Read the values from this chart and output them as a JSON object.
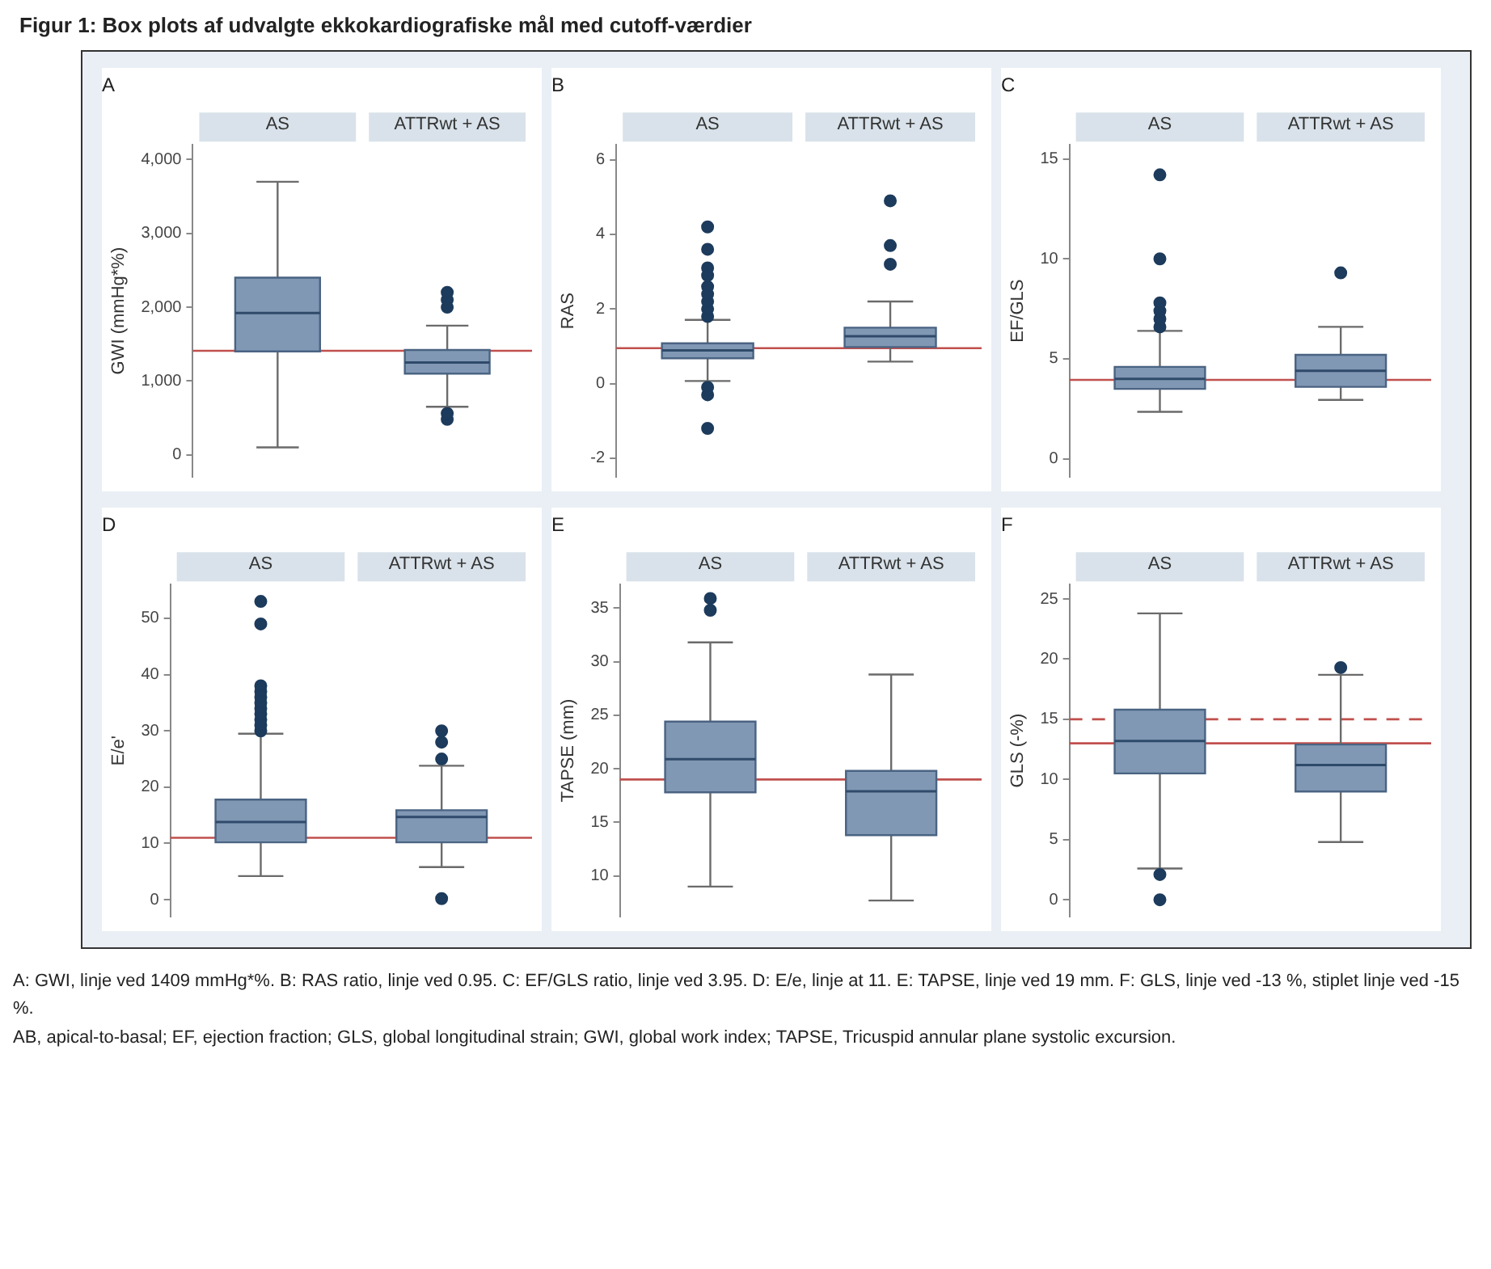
{
  "chart_data": [
    {
      "type": "box",
      "title": "A",
      "ylabel": "GWI (mmHg*%)",
      "categories": [
        "AS",
        "ATTRwt + AS"
      ],
      "ylim": [
        -300,
        4200
      ],
      "yticks": [
        0,
        {
          "value": 1000,
          "label": "1,000"
        },
        {
          "value": 2000,
          "label": "2,000"
        },
        {
          "value": 3000,
          "label": "3,000"
        },
        {
          "value": 4000,
          "label": "4,000"
        }
      ],
      "series": [
        {
          "color": "#8098b4",
          "boxes": [
            {
              "low": 100,
              "q1": 1400,
              "median": 1920,
              "q3": 2400,
              "high": 3700
            },
            {
              "low": 650,
              "q1": 1100,
              "median": 1250,
              "q3": 1420,
              "high": 1750,
              "outliers": [
                480,
                560,
                2000,
                2100,
                2200
              ]
            }
          ]
        }
      ],
      "ref_lines": [
        {
          "axis": "y",
          "value": 1409,
          "color": "#c0504d"
        }
      ],
      "annotations": [
        "Figur 1: Box plots af udvalgte ekkokardiografiske mål med cutoff-værdier"
      ]
    },
    {
      "type": "box",
      "title": "B",
      "ylabel": "RAS",
      "categories": [
        "AS",
        "ATTRwt + AS"
      ],
      "ylim": [
        -2.5,
        6.4
      ],
      "yticks": [
        -2,
        0,
        2,
        4,
        6
      ],
      "series": [
        {
          "color": "#8098b4",
          "boxes": [
            {
              "low": 0.07,
              "q1": 0.68,
              "median": 0.89,
              "q3": 1.08,
              "high": 1.71,
              "outliers": [
                -1.2,
                -0.3,
                -0.1,
                1.8,
                2.0,
                2.2,
                2.4,
                2.6,
                2.9,
                3.1,
                3.6,
                4.2
              ]
            },
            {
              "low": 0.59,
              "q1": 0.98,
              "median": 1.27,
              "q3": 1.5,
              "high": 2.2,
              "outliers": [
                3.2,
                3.7,
                4.9
              ]
            }
          ]
        }
      ],
      "ref_lines": [
        {
          "axis": "y",
          "value": 0.95,
          "color": "#c0504d"
        }
      ]
    },
    {
      "type": "box",
      "title": "C",
      "ylabel": "EF/GLS",
      "categories": [
        "AS",
        "ATTRwt + AS"
      ],
      "ylim": [
        -0.9,
        15.7
      ],
      "yticks": [
        0,
        5,
        10,
        15
      ],
      "series": [
        {
          "color": "#8098b4",
          "boxes": [
            {
              "low": 2.35,
              "q1": 3.5,
              "median": 4.0,
              "q3": 4.6,
              "high": 6.4,
              "outliers": [
                6.6,
                7.0,
                7.4,
                7.8,
                10.0,
                14.2
              ]
            },
            {
              "low": 2.95,
              "q1": 3.6,
              "median": 4.4,
              "q3": 5.2,
              "high": 6.6,
              "outliers": [
                9.3
              ]
            }
          ]
        }
      ],
      "ref_lines": [
        {
          "axis": "y",
          "value": 3.95,
          "color": "#c0504d"
        }
      ]
    },
    {
      "type": "box",
      "title": "D",
      "ylabel": "E/e'",
      "categories": [
        "AS",
        "ATTRwt + AS"
      ],
      "ylim": [
        -3,
        56
      ],
      "yticks": [
        0,
        10,
        20,
        30,
        40,
        50
      ],
      "series": [
        {
          "color": "#8098b4",
          "boxes": [
            {
              "low": 4.2,
              "q1": 10.2,
              "median": 13.8,
              "q3": 17.8,
              "high": 29.5,
              "outliers": [
                30,
                31,
                32,
                33,
                34,
                35,
                36,
                37,
                38,
                49,
                53
              ]
            },
            {
              "low": 5.8,
              "q1": 10.2,
              "median": 14.7,
              "q3": 15.9,
              "high": 23.8,
              "outliers": [
                0.2,
                25,
                28,
                30
              ]
            }
          ]
        }
      ],
      "ref_lines": [
        {
          "axis": "y",
          "value": 11,
          "color": "#c0504d"
        }
      ]
    },
    {
      "type": "box",
      "title": "E",
      "ylabel": "TAPSE (mm)",
      "categories": [
        "AS",
        "ATTRwt + AS"
      ],
      "ylim": [
        6.2,
        37.2
      ],
      "yticks": [
        10,
        15,
        20,
        25,
        30,
        35
      ],
      "series": [
        {
          "color": "#8098b4",
          "boxes": [
            {
              "low": 9,
              "q1": 17.8,
              "median": 20.9,
              "q3": 24.4,
              "high": 31.8,
              "outliers": [
                34.8,
                35.9
              ]
            },
            {
              "low": 7.7,
              "q1": 13.8,
              "median": 17.9,
              "q3": 19.8,
              "high": 28.8
            }
          ]
        }
      ],
      "ref_lines": [
        {
          "axis": "y",
          "value": 19,
          "color": "#c0504d"
        }
      ]
    },
    {
      "type": "box",
      "title": "F",
      "ylabel": "GLS (-%)",
      "categories": [
        "AS",
        "ATTRwt + AS"
      ],
      "ylim": [
        -1.4,
        26.2
      ],
      "yticks": [
        0,
        5,
        10,
        15,
        20,
        25
      ],
      "series": [
        {
          "color": "#8098b4",
          "boxes": [
            {
              "low": 2.6,
              "q1": 10.5,
              "median": 13.2,
              "q3": 15.8,
              "high": 23.8,
              "outliers": [
                0,
                2.1
              ]
            },
            {
              "low": 4.8,
              "q1": 9.0,
              "median": 11.2,
              "q3": 12.9,
              "high": 18.7,
              "outliers": [
                19.3
              ]
            }
          ]
        }
      ],
      "ref_lines": [
        {
          "axis": "y",
          "value": 13,
          "color": "#c0504d"
        },
        {
          "axis": "y",
          "value": 15,
          "color": "#c0504d",
          "line_style": "dashed"
        }
      ],
      "annotations": [
        "A: GWI, linje ved 1409 mmHg*%. B: RAS ratio, linje ved 0.95. C: EF/GLS ratio, linje ved 3.95. D: E/e, linje at 11. E: TAPSE, linje ved 19 mm. F: GLS, linje ved -13 %, stiplet linje ved -15 %.",
        "AB, apical-to-basal; EF, ejection fraction; GLS, global longitudinal strain; GWI, global work index; TAPSE, Tricuspid annular plane systolic excursion."
      ]
    }
  ]
}
